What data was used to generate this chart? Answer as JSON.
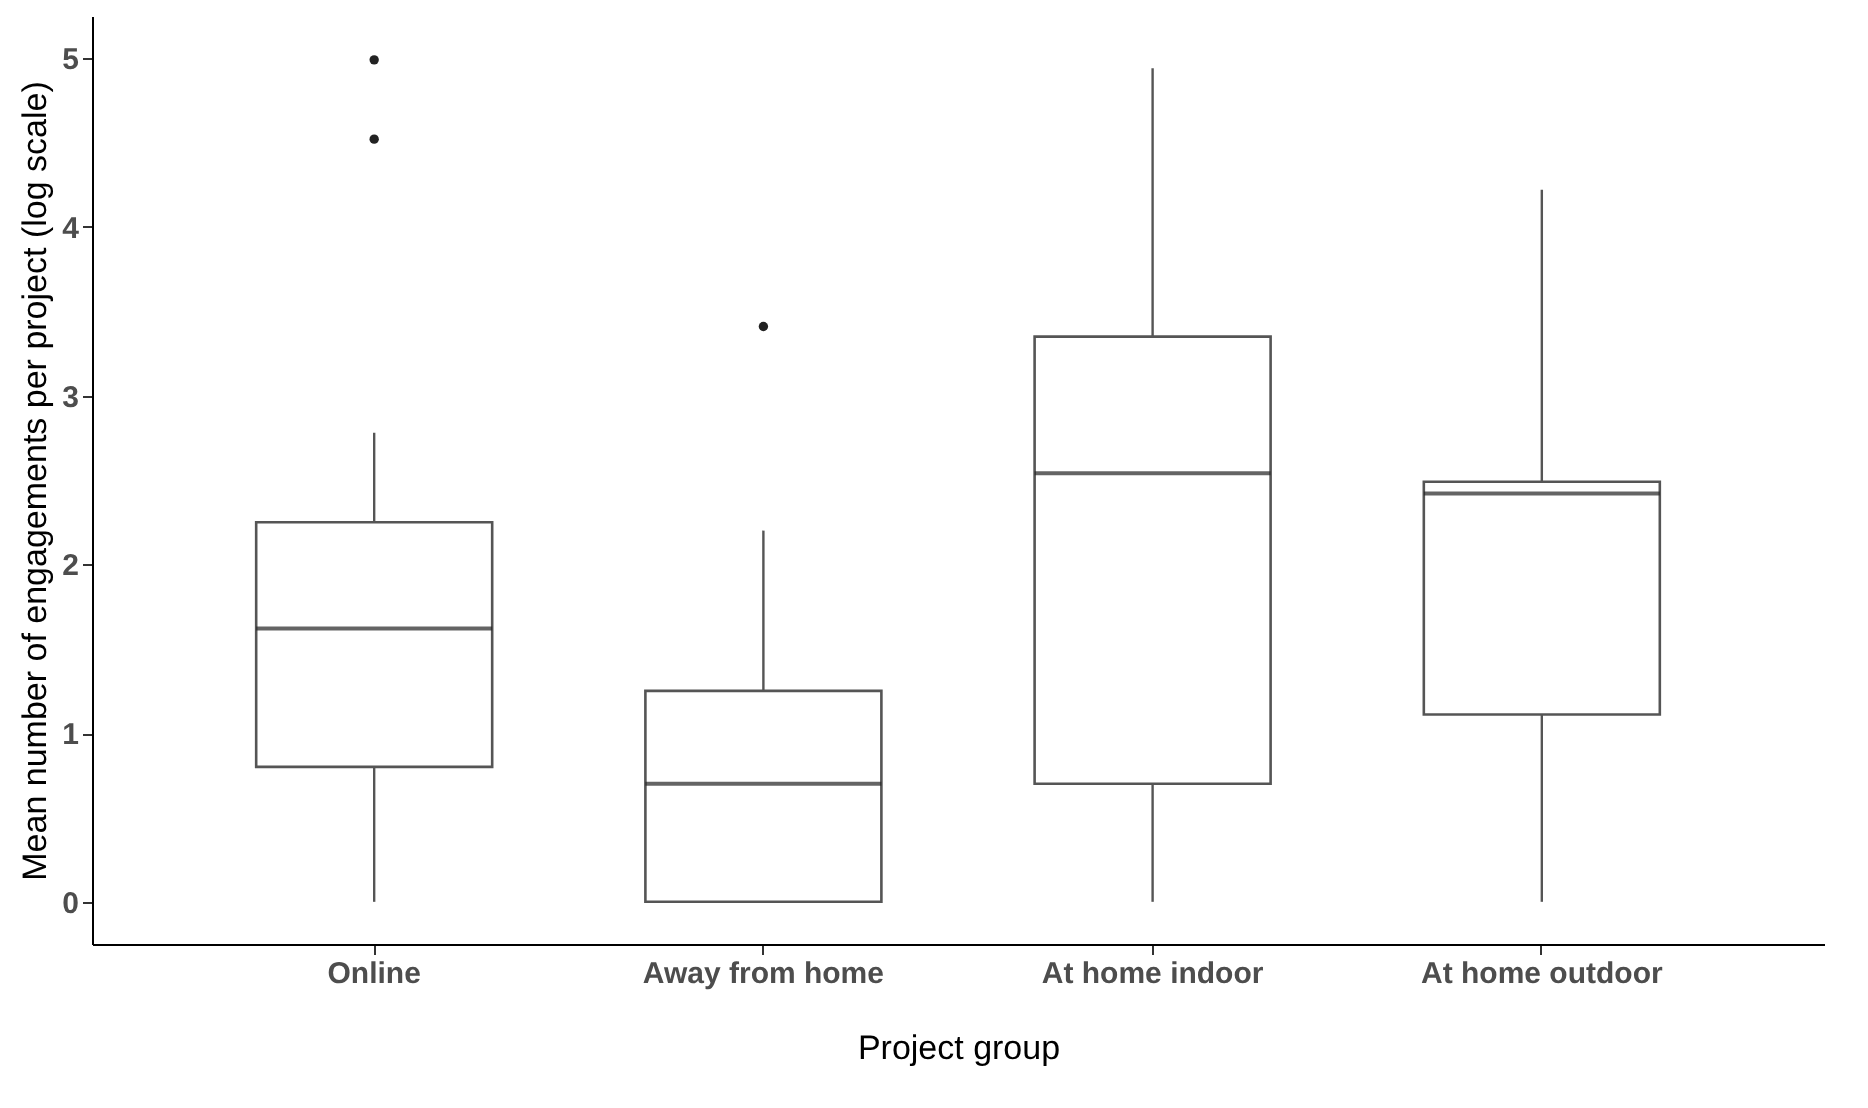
{
  "chart_data": {
    "type": "box",
    "xlabel": "Project group",
    "ylabel": "Mean number of engagements per project (log scale)",
    "categories": [
      "Online",
      "Away from home",
      "At home indoor",
      "At home outdoor"
    ],
    "boxes": [
      {
        "low": 0,
        "q1": 0.8,
        "median": 1.62,
        "q3": 2.25,
        "high": 2.78,
        "outliers": [
          4.52,
          4.99
        ]
      },
      {
        "low": 0,
        "q1": 0,
        "median": 0.7,
        "q3": 1.25,
        "high": 2.2,
        "outliers": [
          3.41
        ]
      },
      {
        "low": 0,
        "q1": 0.7,
        "median": 2.54,
        "q3": 3.35,
        "high": 4.94
      },
      {
        "low": 0,
        "q1": 1.11,
        "median": 2.42,
        "q3": 2.49,
        "high": 4.22
      }
    ],
    "ylim": [
      -0.25,
      5.25
    ],
    "yticks": [
      0,
      1,
      2,
      3,
      4,
      5
    ]
  }
}
